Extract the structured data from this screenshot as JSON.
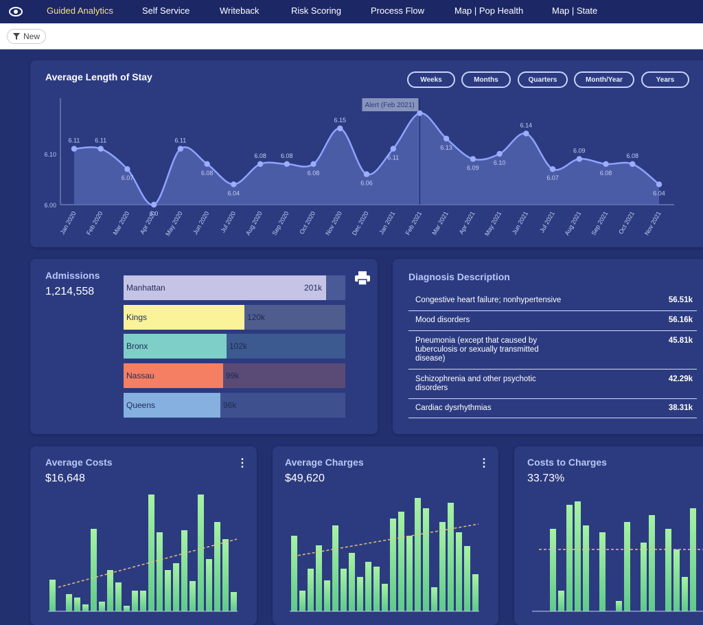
{
  "nav": {
    "items": [
      "Guided Analytics",
      "Self Service",
      "Writeback",
      "Risk Scoring",
      "Process Flow",
      "Map | Pop Health",
      "Map | State"
    ],
    "active_color": "#f3e27a"
  },
  "toolbar": {
    "new_label": "New"
  },
  "los": {
    "title": "Average Length of Stay",
    "buttons": [
      "Weeks",
      "Months",
      "Quarters",
      "Month/Year",
      "Years"
    ],
    "tooltip": "Alert (Feb 2021)"
  },
  "chart_data": {
    "type": "area",
    "title": "Average Length of Stay",
    "categories": [
      "Jan 2020",
      "Feb 2020",
      "Mar 2020",
      "Apr 2020",
      "May 2020",
      "Jun 2020",
      "Jul 2020",
      "Aug 2020",
      "Sep 2020",
      "Oct 2020",
      "Nov 2020",
      "Dec 2020",
      "Jan 2021",
      "Feb 2021",
      "Mar 2021",
      "Apr 2021",
      "May 2021",
      "Jun 2021",
      "Jul 2021",
      "Aug 2021",
      "Sep 2021",
      "Oct 2021",
      "Nov 2021"
    ],
    "values": [
      6.11,
      6.11,
      6.07,
      6.0,
      6.11,
      6.08,
      6.04,
      6.08,
      6.08,
      6.08,
      6.15,
      6.06,
      6.11,
      6.18,
      6.13,
      6.09,
      6.1,
      6.14,
      6.07,
      6.09,
      6.08,
      6.08,
      6.04
    ],
    "labels": [
      "6.11",
      "6.11",
      "6.07",
      "6.0",
      "6.11",
      "6.08",
      "6.04",
      "6.08",
      "6.08",
      "6.08",
      "6.15",
      "6.06",
      "6.11",
      "",
      "6.13",
      "6.09",
      "6.10",
      "6.14",
      "6.07",
      "6.09",
      "6.08",
      "6.08",
      "6.04"
    ],
    "yticks": [
      "6.10",
      "6.00"
    ],
    "ylim": [
      6.0,
      6.2
    ],
    "highlight_category": "Feb 2021",
    "line_color": "#8fa3ff"
  },
  "admissions": {
    "title": "Admissions",
    "total": "1,214,558",
    "bars": [
      {
        "name": "Manhattan",
        "label": "201k",
        "value": 201,
        "color": "#c5c3e6",
        "bg": "#4a5a96"
      },
      {
        "name": "Kings",
        "label": "120k",
        "value": 120,
        "color": "#fbf39a",
        "bg": "#4f5d8e"
      },
      {
        "name": "Bronx",
        "label": "102k",
        "value": 102,
        "color": "#7ecfc7",
        "bg": "#3c5a8f"
      },
      {
        "name": "Nassau",
        "label": "99k",
        "value": 99,
        "color": "#f57f63",
        "bg": "#5a4a76"
      },
      {
        "name": "Queens",
        "label": "96k",
        "value": 96,
        "color": "#86b0e0",
        "bg": "#3e518e"
      }
    ]
  },
  "diagnosis": {
    "title": "Diagnosis Description",
    "rows": [
      {
        "name": "Congestive heart failure; nonhypertensive",
        "value": "56.51k"
      },
      {
        "name": "Mood disorders",
        "value": "56.16k"
      },
      {
        "name": "Pneumonia (except that caused by tuberculosis or sexually transmitted disease)",
        "value": "45.81k"
      },
      {
        "name": "Schizophrenia and other psychotic disorders",
        "value": "42.29k"
      },
      {
        "name": "Cardiac dysrhythmias",
        "value": "38.31k"
      }
    ]
  },
  "kpis": [
    {
      "title": "Average Costs",
      "value": "$16,648",
      "bars": [
        46,
        0,
        25,
        20,
        10,
        120,
        14,
        60,
        42,
        8,
        30,
        30,
        170,
        115,
        60,
        70,
        118,
        44,
        170,
        76,
        130,
        105,
        28
      ]
    },
    {
      "title": "Average Charges",
      "value": "$49,620",
      "bars": [
        110,
        30,
        62,
        96,
        45,
        125,
        62,
        85,
        50,
        72,
        65,
        40,
        135,
        145,
        110,
        165,
        150,
        35,
        130,
        158,
        115,
        95,
        54
      ]
    },
    {
      "title": "Costs to Charges",
      "value": "33.73%",
      "bars": [
        0,
        0,
        120,
        30,
        155,
        160,
        125,
        0,
        115,
        0,
        15,
        130,
        0,
        100,
        140,
        0,
        120,
        90,
        50,
        150,
        125,
        110,
        0
      ]
    }
  ]
}
